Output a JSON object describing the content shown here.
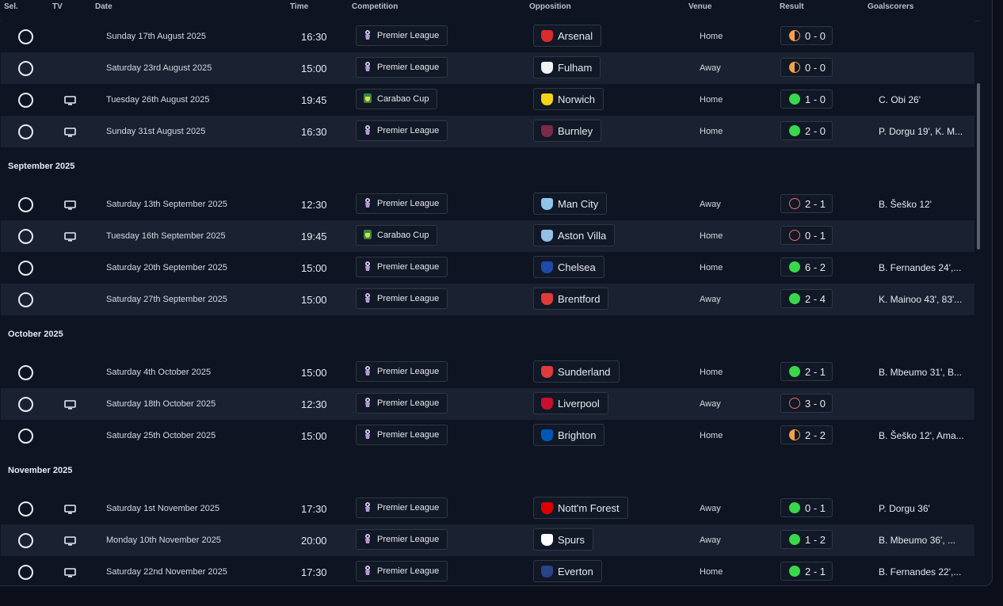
{
  "header": {
    "sel": "Sel.",
    "tv": "TV",
    "date": "Date",
    "time": "Time",
    "competition": "Competition",
    "opposition": "Opposition",
    "venue": "Venue",
    "result": "Result",
    "goalscorers": "Goalscorers"
  },
  "sections": [
    {
      "title": "",
      "matches": [
        {
          "tv": false,
          "date": "Sunday 17th August 2025",
          "time": "16:30",
          "competition": "Premier League",
          "comp_icon": "premier-league-icon",
          "opposition": "Arsenal",
          "crest_color": "#d92b2b",
          "venue": "Home",
          "result": "0 - 0",
          "outcome": "draw",
          "scorers": ""
        },
        {
          "tv": false,
          "date": "Saturday 23rd August 2025",
          "time": "15:00",
          "competition": "Premier League",
          "comp_icon": "premier-league-icon",
          "opposition": "Fulham",
          "crest_color": "#f2f2f2",
          "venue": "Away",
          "result": "0 - 0",
          "outcome": "draw",
          "scorers": ""
        },
        {
          "tv": true,
          "date": "Tuesday 26th August 2025",
          "time": "19:45",
          "competition": "Carabao Cup",
          "comp_icon": "carabao-cup-icon",
          "opposition": "Norwich",
          "crest_color": "#f7d417",
          "venue": "Home",
          "result": "1 - 0",
          "outcome": "win",
          "scorers": "C. Obi 26'"
        },
        {
          "tv": true,
          "date": "Sunday 31st August 2025",
          "time": "16:30",
          "competition": "Premier League",
          "comp_icon": "premier-league-icon",
          "opposition": "Burnley",
          "crest_color": "#7a2a4a",
          "venue": "Home",
          "result": "2 - 0",
          "outcome": "win",
          "scorers": "P. Dorgu 19', K. M..."
        }
      ]
    },
    {
      "title": "September 2025",
      "matches": [
        {
          "tv": true,
          "date": "Saturday 13th September 2025",
          "time": "12:30",
          "competition": "Premier League",
          "comp_icon": "premier-league-icon",
          "opposition": "Man City",
          "crest_color": "#8ec5ea",
          "venue": "Away",
          "result": "2 - 1",
          "outcome": "loss",
          "scorers": "B. Šeško 12'"
        },
        {
          "tv": true,
          "date": "Tuesday 16th September 2025",
          "time": "19:45",
          "competition": "Carabao Cup",
          "comp_icon": "carabao-cup-icon",
          "opposition": "Aston Villa",
          "crest_color": "#95bfe5",
          "venue": "Home",
          "result": "0 - 1",
          "outcome": "loss",
          "scorers": ""
        },
        {
          "tv": false,
          "date": "Saturday 20th September 2025",
          "time": "15:00",
          "competition": "Premier League",
          "comp_icon": "premier-league-icon",
          "opposition": "Chelsea",
          "crest_color": "#1e4aa8",
          "venue": "Home",
          "result": "6 - 2",
          "outcome": "win",
          "scorers": "B. Fernandes 24',..."
        },
        {
          "tv": false,
          "date": "Saturday 27th September 2025",
          "time": "15:00",
          "competition": "Premier League",
          "comp_icon": "premier-league-icon",
          "opposition": "Brentford",
          "crest_color": "#e03a3a",
          "venue": "Away",
          "result": "2 - 4",
          "outcome": "win",
          "scorers": "K. Mainoo 43', 83'..."
        }
      ]
    },
    {
      "title": "October 2025",
      "matches": [
        {
          "tv": false,
          "date": "Saturday 4th October 2025",
          "time": "15:00",
          "competition": "Premier League",
          "comp_icon": "premier-league-icon",
          "opposition": "Sunderland",
          "crest_color": "#e03a3a",
          "venue": "Home",
          "result": "2 - 1",
          "outcome": "win",
          "scorers": "B. Mbeumo 31', B..."
        },
        {
          "tv": true,
          "date": "Saturday 18th October 2025",
          "time": "12:30",
          "competition": "Premier League",
          "comp_icon": "premier-league-icon",
          "opposition": "Liverpool",
          "crest_color": "#c8102e",
          "venue": "Away",
          "result": "3 - 0",
          "outcome": "loss",
          "scorers": ""
        },
        {
          "tv": false,
          "date": "Saturday 25th October 2025",
          "time": "15:00",
          "competition": "Premier League",
          "comp_icon": "premier-league-icon",
          "opposition": "Brighton",
          "crest_color": "#0057b8",
          "venue": "Home",
          "result": "2 - 2",
          "outcome": "draw",
          "scorers": "B. Šeško 12', Ama..."
        }
      ]
    },
    {
      "title": "November 2025",
      "matches": [
        {
          "tv": true,
          "date": "Saturday 1st November 2025",
          "time": "17:30",
          "competition": "Premier League",
          "comp_icon": "premier-league-icon",
          "opposition": "Nott'm Forest",
          "crest_color": "#dd0000",
          "venue": "Away",
          "result": "0 - 1",
          "outcome": "win",
          "scorers": "P. Dorgu 36'"
        },
        {
          "tv": true,
          "date": "Monday 10th November 2025",
          "time": "20:00",
          "competition": "Premier League",
          "comp_icon": "premier-league-icon",
          "opposition": "Spurs",
          "crest_color": "#ffffff",
          "venue": "Away",
          "result": "1 - 2",
          "outcome": "win",
          "scorers": "B. Mbeumo 36', ..."
        },
        {
          "tv": true,
          "date": "Saturday 22nd November 2025",
          "time": "17:30",
          "competition": "Premier League",
          "comp_icon": "premier-league-icon",
          "opposition": "Everton",
          "crest_color": "#274488",
          "venue": "Home",
          "result": "2 - 1",
          "outcome": "win",
          "scorers": "B. Fernandes 22',..."
        }
      ]
    }
  ]
}
